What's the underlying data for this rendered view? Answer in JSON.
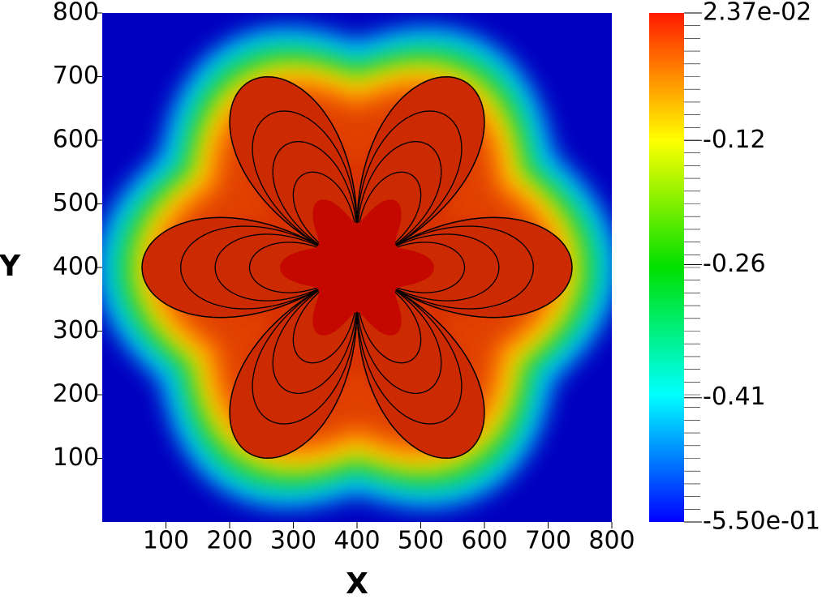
{
  "chart_data": {
    "type": "heatmap",
    "x_label": "X",
    "y_label": "Y",
    "xlim": [
      0,
      800
    ],
    "ylim": [
      0,
      800
    ],
    "xticks": [
      100,
      200,
      300,
      400,
      500,
      600,
      700,
      800
    ],
    "yticks": [
      100,
      200,
      300,
      400,
      500,
      600,
      700,
      800
    ],
    "colorbar": {
      "lim": [
        -0.55,
        0.0237
      ],
      "ticks": [
        {
          "value": 0.0237,
          "label": "2.37e-02"
        },
        -0.12,
        -0.26,
        -0.41,
        {
          "value": -0.55,
          "label": "-5.50e-01"
        }
      ]
    }
  }
}
